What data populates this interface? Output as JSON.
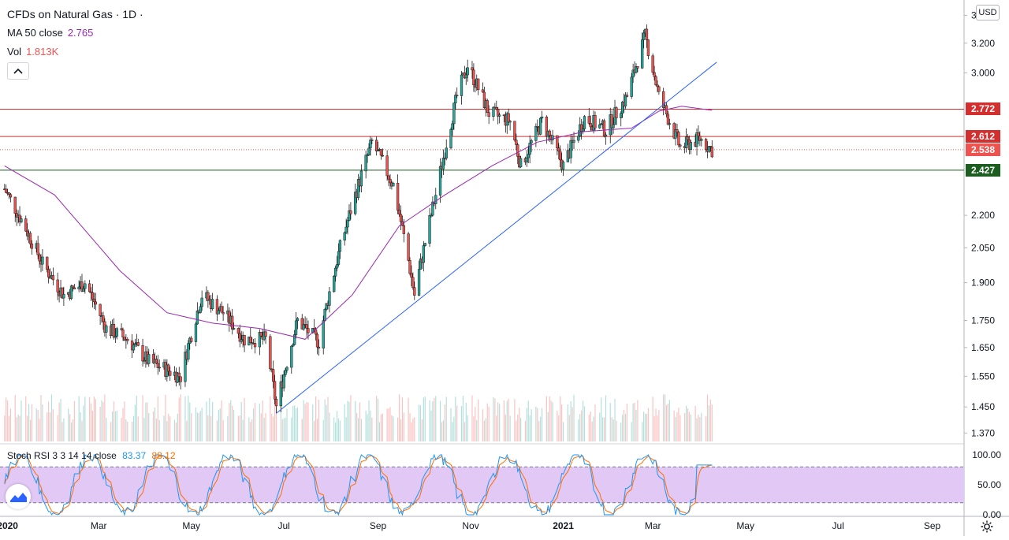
{
  "legend": {
    "title": "CFDs on Natural Gas · 1D · ",
    "ma_label": "MA 50 close",
    "ma_value": "2.765",
    "vol_label": "Vol",
    "vol_value": "1.813K",
    "currency": "USD"
  },
  "colors": {
    "up": "#26a69a",
    "down": "#ef5350",
    "ma": "#9c27b0",
    "trendline": "#2962ff",
    "resistance": "#d32f2f",
    "support": "#1b5e20",
    "stoch_k": "#2196f3",
    "stoch_d": "#ff6d00",
    "stoch_band": "#e1c8f5"
  },
  "chart_data": [
    {
      "type": "candlestick",
      "title": "CFDs on Natural Gas · 1D",
      "x_ticks": [
        "2020",
        "Mar",
        "May",
        "Jul",
        "Sep",
        "Nov",
        "2021",
        "Mar",
        "May",
        "Jul",
        "Sep"
      ],
      "y_ticks": [
        "3.400",
        "3.200",
        "3.000",
        "2.200",
        "2.050",
        "1.900",
        "1.750",
        "1.650",
        "1.550",
        "1.450",
        "1.370"
      ],
      "ylim": [
        1.3,
        3.5
      ],
      "scale": "log",
      "price_tags": [
        {
          "value": "2.772",
          "kind": "resistance"
        },
        {
          "value": "2.612",
          "kind": "resistance"
        },
        {
          "value": "2.538",
          "kind": "last"
        },
        {
          "value": "2.427",
          "kind": "support"
        }
      ],
      "horizontal_lines": [
        2.772,
        2.612,
        2.427
      ],
      "last_price": 2.538,
      "trendline": {
        "from": {
          "date": "2020-06-26",
          "price": 1.43
        },
        "to": {
          "date": "2021-04-12",
          "price": 3.07
        }
      },
      "close_path": [
        [
          "2019-12-30",
          2.33
        ],
        [
          "2020-01-10",
          2.18
        ],
        [
          "2020-01-24",
          1.98
        ],
        [
          "2020-02-07",
          1.85
        ],
        [
          "2020-02-21",
          1.9
        ],
        [
          "2020-03-06",
          1.72
        ],
        [
          "2020-03-20",
          1.68
        ],
        [
          "2020-04-03",
          1.6
        ],
        [
          "2020-04-24",
          1.55
        ],
        [
          "2020-05-08",
          1.85
        ],
        [
          "2020-05-22",
          1.78
        ],
        [
          "2020-06-05",
          1.68
        ],
        [
          "2020-06-19",
          1.68
        ],
        [
          "2020-06-26",
          1.45
        ],
        [
          "2020-07-10",
          1.75
        ],
        [
          "2020-07-24",
          1.67
        ],
        [
          "2020-08-07",
          2.05
        ],
        [
          "2020-08-21",
          2.4
        ],
        [
          "2020-08-28",
          2.58
        ],
        [
          "2020-09-11",
          2.35
        ],
        [
          "2020-09-25",
          1.85
        ],
        [
          "2020-10-09",
          2.3
        ],
        [
          "2020-10-23",
          2.85
        ],
        [
          "2020-10-30",
          3.05
        ],
        [
          "2020-11-13",
          2.75
        ],
        [
          "2020-11-27",
          2.7
        ],
        [
          "2020-12-04",
          2.45
        ],
        [
          "2020-12-18",
          2.7
        ],
        [
          "2021-01-01",
          2.45
        ],
        [
          "2021-01-15",
          2.72
        ],
        [
          "2021-01-29",
          2.65
        ],
        [
          "2021-02-12",
          2.85
        ],
        [
          "2021-02-24",
          3.25
        ],
        [
          "2021-03-05",
          2.85
        ],
        [
          "2021-03-19",
          2.55
        ],
        [
          "2021-04-01",
          2.6
        ],
        [
          "2021-04-09",
          2.538
        ]
      ],
      "ma50_path": [
        [
          "2019-12-30",
          2.45
        ],
        [
          "2020-02-01",
          2.3
        ],
        [
          "2020-03-15",
          1.95
        ],
        [
          "2020-04-15",
          1.78
        ],
        [
          "2020-05-15",
          1.74
        ],
        [
          "2020-06-15",
          1.72
        ],
        [
          "2020-07-15",
          1.68
        ],
        [
          "2020-08-15",
          1.85
        ],
        [
          "2020-09-15",
          2.15
        ],
        [
          "2020-10-15",
          2.3
        ],
        [
          "2020-11-15",
          2.45
        ],
        [
          "2020-12-15",
          2.58
        ],
        [
          "2021-01-15",
          2.64
        ],
        [
          "2021-02-15",
          2.66
        ],
        [
          "2021-03-05",
          2.76
        ],
        [
          "2021-03-20",
          2.79
        ],
        [
          "2021-04-09",
          2.765
        ]
      ]
    },
    {
      "type": "line",
      "title": "Stoch RSI 3 3 14 14 close",
      "series": [
        {
          "name": "K",
          "value": "83.37"
        },
        {
          "name": "D",
          "value": "88.12"
        }
      ],
      "y_ticks": [
        "100.00",
        "50.00",
        "0.00"
      ],
      "ylim": [
        0,
        100
      ],
      "bands": [
        80,
        20
      ]
    }
  ],
  "stoch": {
    "label": "Stoch RSI 3 3 14 14 close",
    "k_value": "83.37",
    "d_value": "88.12"
  }
}
